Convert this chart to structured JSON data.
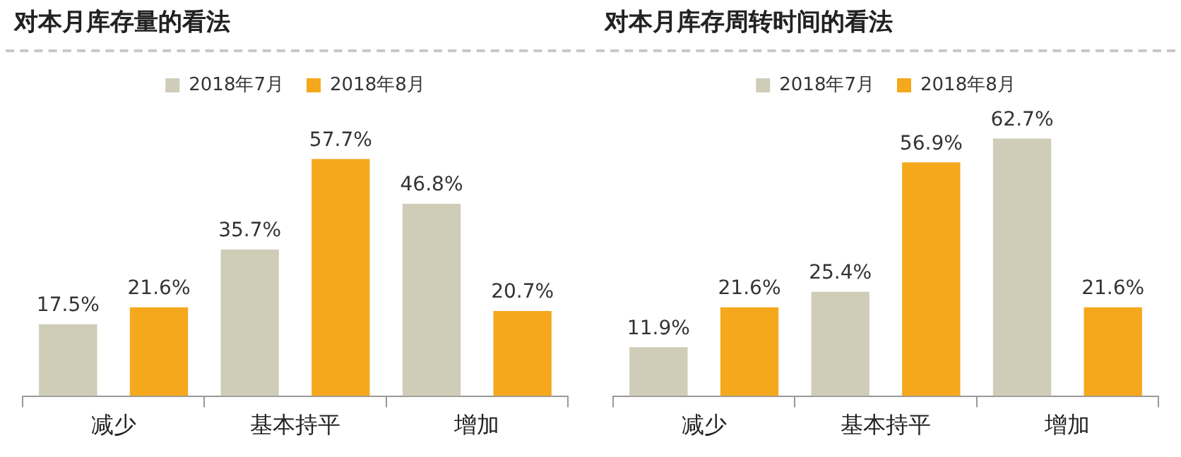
{
  "chart_data": [
    {
      "type": "bar",
      "title": "对本月库存量的看法",
      "categories": [
        "减少",
        "基本持平",
        "增加"
      ],
      "legend": "top",
      "series": [
        {
          "name": "2018年7月",
          "color": "#cfcdb8",
          "values": [
            17.5,
            35.7,
            46.8
          ],
          "value_labels": [
            "17.5%",
            "35.7%",
            "46.8%"
          ]
        },
        {
          "name": "2018年8月",
          "color": "#f5a81c",
          "values": [
            21.6,
            57.7,
            20.7
          ],
          "value_labels": [
            "21.6%",
            "57.7%",
            "20.7%"
          ]
        }
      ]
    },
    {
      "type": "bar",
      "title": "对本月库存周转时间的看法",
      "categories": [
        "减少",
        "基本持平",
        "增加"
      ],
      "legend": "top",
      "series": [
        {
          "name": "2018年7月",
          "color": "#cfcdb8",
          "values": [
            11.9,
            25.4,
            62.7
          ],
          "value_labels": [
            "11.9%",
            "25.4%",
            "62.7%"
          ]
        },
        {
          "name": "2018年8月",
          "color": "#f5a81c",
          "values": [
            21.6,
            56.9,
            21.6
          ],
          "value_labels": [
            "21.6%",
            "56.9%",
            "21.6%"
          ]
        }
      ]
    }
  ]
}
